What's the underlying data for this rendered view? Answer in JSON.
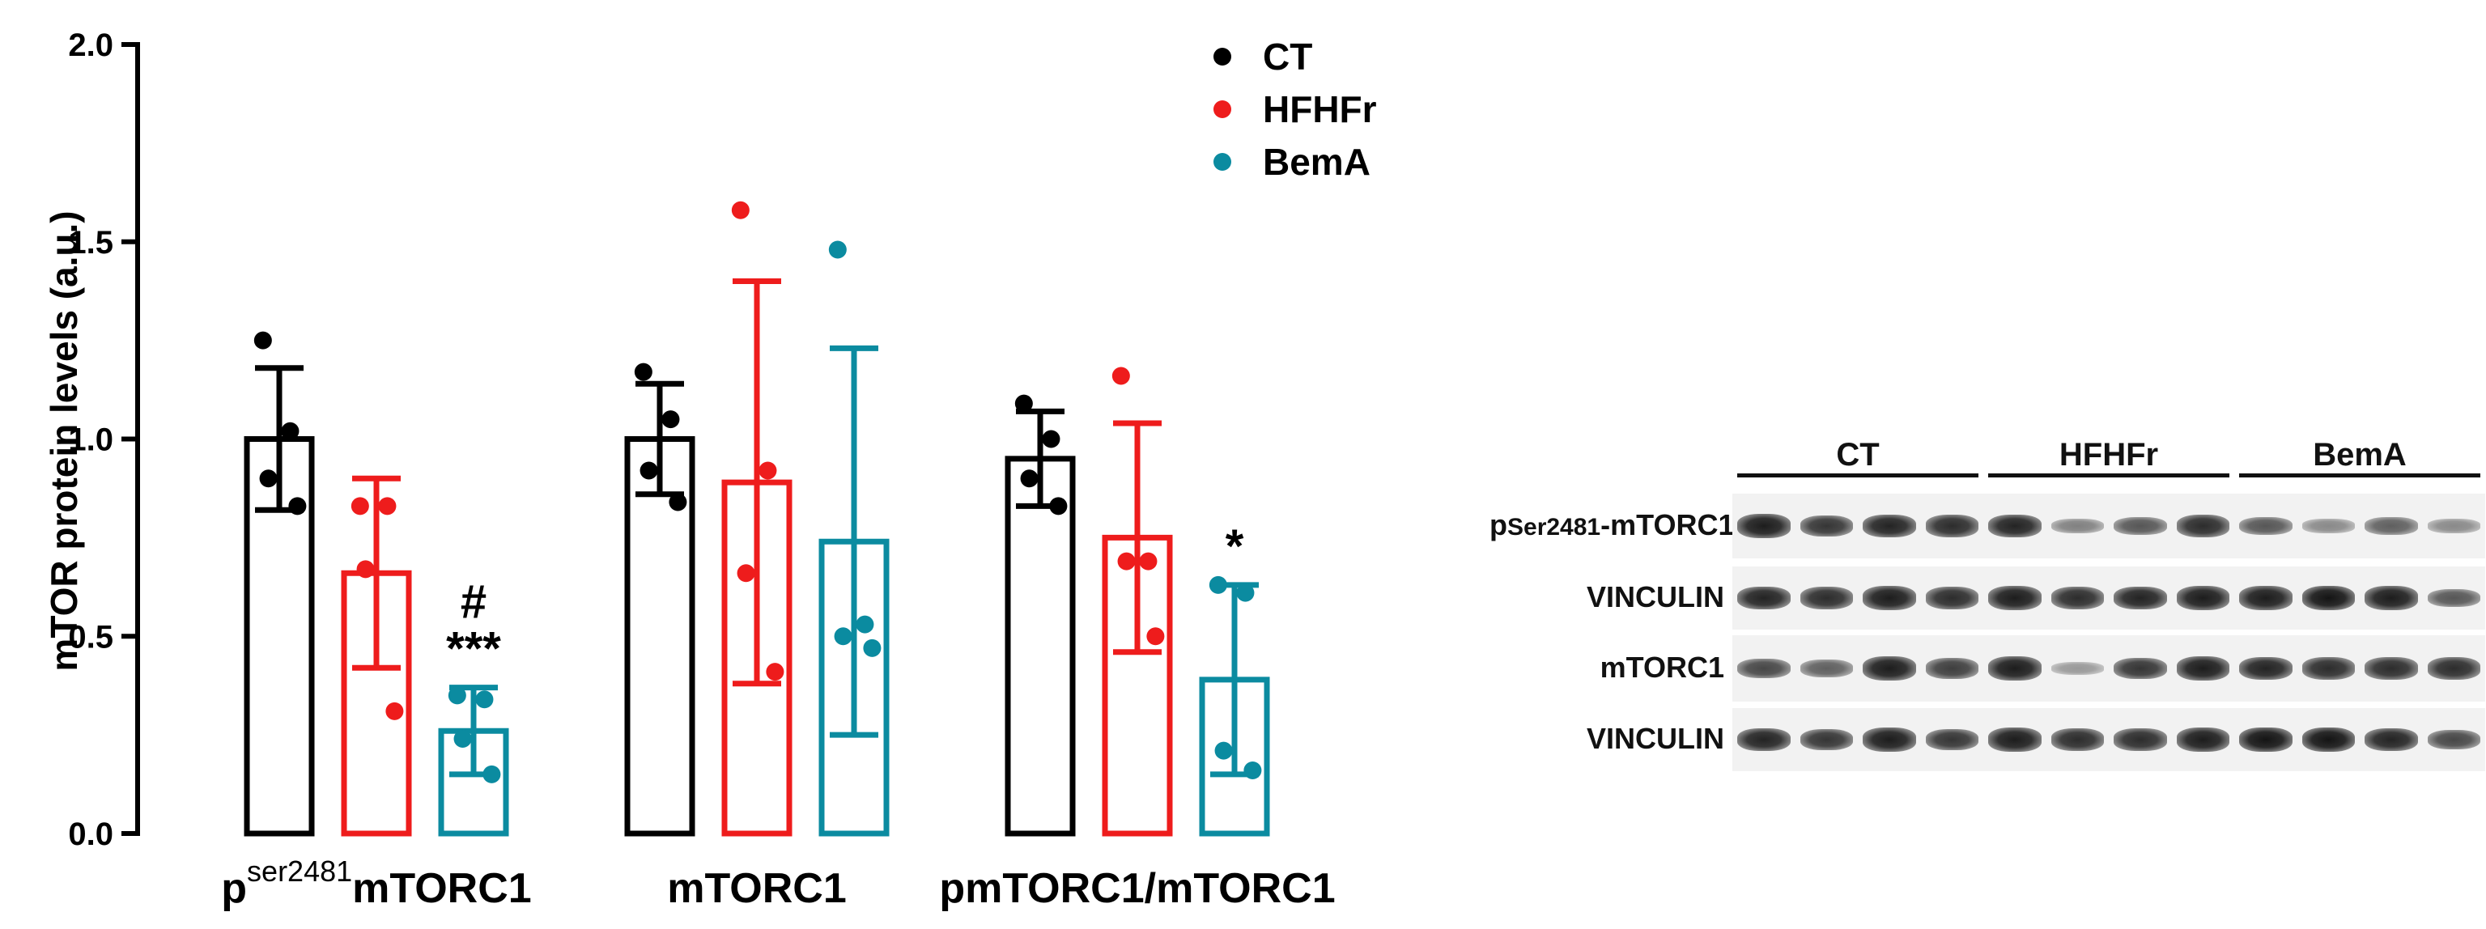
{
  "chart_data": {
    "type": "bar",
    "ylabel": "mTOR protein levels (a.u.)",
    "ylim": [
      0,
      2.0
    ],
    "yticks": [
      "0.0",
      "0.5",
      "1.0",
      "1.5",
      "2.0"
    ],
    "categories": [
      {
        "main": "p",
        "sup": "ser2481",
        "rest": "mTORC1"
      },
      {
        "main": "mTORC1",
        "sup": "",
        "rest": ""
      },
      {
        "main": "pmTORC1/mTORC1",
        "sup": "",
        "rest": ""
      }
    ],
    "legend_position": "top-center",
    "series": [
      {
        "name": "CT",
        "color": "#000000",
        "values": [
          1.0,
          1.0,
          0.95
        ],
        "sd": [
          0.18,
          0.14,
          0.12
        ],
        "points": [
          [
            1.25,
            1.02,
            0.9,
            0.83
          ],
          [
            1.17,
            1.05,
            0.92,
            0.84
          ],
          [
            1.09,
            1.0,
            0.9,
            0.83
          ]
        ],
        "annotations": [
          "",
          "",
          ""
        ]
      },
      {
        "name": "HFHFr",
        "color": "#ee1c1c",
        "values": [
          0.66,
          0.89,
          0.75
        ],
        "sd": [
          0.24,
          0.51,
          0.29
        ],
        "points": [
          [
            0.83,
            0.83,
            0.67,
            0.31
          ],
          [
            1.58,
            0.92,
            0.66,
            0.41
          ],
          [
            1.16,
            0.69,
            0.69,
            0.5
          ]
        ],
        "annotations": [
          "",
          "",
          ""
        ]
      },
      {
        "name": "BemA",
        "color": "#0b8ba0",
        "values": [
          0.26,
          0.74,
          0.39
        ],
        "sd": [
          0.11,
          0.49,
          0.24
        ],
        "points": [
          [
            0.35,
            0.34,
            0.24,
            0.15
          ],
          [
            1.48,
            0.53,
            0.5,
            0.47
          ],
          [
            0.63,
            0.61,
            0.21,
            0.16
          ]
        ],
        "annotations": [
          "# ***",
          "",
          "*"
        ]
      }
    ]
  },
  "blot": {
    "groups": [
      "CT",
      "HFHFr",
      "BemA"
    ],
    "rows": [
      {
        "label_main": "p",
        "label_sub": "Ser2481",
        "label_rest": "-mTORC1",
        "intensity": [
          0.95,
          0.8,
          0.9,
          0.85,
          0.9,
          0.35,
          0.6,
          0.85,
          0.6,
          0.3,
          0.55,
          0.3
        ]
      },
      {
        "label_main": "VINCULIN",
        "label_sub": "",
        "label_rest": "",
        "intensity": [
          0.9,
          0.85,
          0.95,
          0.85,
          0.95,
          0.85,
          0.9,
          0.95,
          0.95,
          1.0,
          0.95,
          0.6
        ]
      },
      {
        "label_main": "mTORC1",
        "label_sub": "",
        "label_rest": "",
        "intensity": [
          0.7,
          0.55,
          0.95,
          0.75,
          0.95,
          0.2,
          0.8,
          0.95,
          0.9,
          0.85,
          0.85,
          0.85
        ]
      },
      {
        "label_main": "VINCULIN",
        "label_sub": "",
        "label_rest": "",
        "intensity": [
          0.9,
          0.8,
          0.95,
          0.8,
          0.95,
          0.85,
          0.85,
          0.95,
          1.0,
          1.0,
          0.9,
          0.7
        ]
      }
    ]
  }
}
